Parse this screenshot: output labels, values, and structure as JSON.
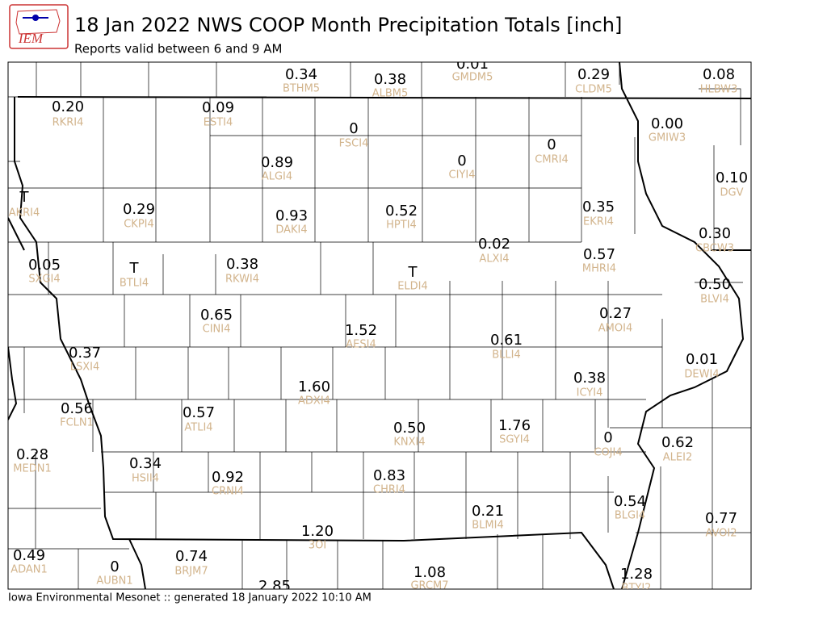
{
  "header": {
    "title": "18 Jan 2022 NWS COOP Month Precipitation Totals [inch]",
    "subtitle": "Reports valid between 6 and 9 AM",
    "logo": "IEM"
  },
  "footer": "Iowa Environmental Mesonet :: generated 18 January 2022 10:10 AM",
  "stations": [
    {
      "value": "0.34",
      "id": "BTHM5"
    },
    {
      "value": "0.38",
      "id": "ALBM5"
    },
    {
      "value": "0.01",
      "id": "GMDM5"
    },
    {
      "value": "0.29",
      "id": "CLDM5"
    },
    {
      "value": "0.08",
      "id": "HLBW3"
    },
    {
      "value": "0.20",
      "id": "RKRI4"
    },
    {
      "value": "0.09",
      "id": "ESTI4"
    },
    {
      "value": "0",
      "id": "FSCI4"
    },
    {
      "value": "0.00",
      "id": "GMIW3"
    },
    {
      "value": "0",
      "id": "CMRI4"
    },
    {
      "value": "0",
      "id": "CIYI4"
    },
    {
      "value": "0.89",
      "id": "ALGI4"
    },
    {
      "value": "0.10",
      "id": "DGV"
    },
    {
      "value": "T",
      "id": "AKRI4"
    },
    {
      "value": "0.29",
      "id": "CKPI4"
    },
    {
      "value": "0.93",
      "id": "DAKI4"
    },
    {
      "value": "0.52",
      "id": "HPTI4"
    },
    {
      "value": "0.35",
      "id": "EKRI4"
    },
    {
      "value": "0.30",
      "id": "CBCW3"
    },
    {
      "value": "0.02",
      "id": "ALXI4"
    },
    {
      "value": "0.05",
      "id": "SXGI4"
    },
    {
      "value": "T",
      "id": "BTLI4"
    },
    {
      "value": "0.38",
      "id": "RKWI4"
    },
    {
      "value": "T",
      "id": "ELDI4"
    },
    {
      "value": "0.57",
      "id": "MHRI4"
    },
    {
      "value": "0.50",
      "id": "BLVI4"
    },
    {
      "value": "0.27",
      "id": "AMOI4"
    },
    {
      "value": "0.65",
      "id": "CINI4"
    },
    {
      "value": "1.52",
      "id": "AESI4"
    },
    {
      "value": "0.61",
      "id": "BLLI4"
    },
    {
      "value": "0.37",
      "id": "LSXI4"
    },
    {
      "value": "0.01",
      "id": "DEWI4"
    },
    {
      "value": "0.38",
      "id": "ICYI4"
    },
    {
      "value": "1.60",
      "id": "ADXI4"
    },
    {
      "value": "0.56",
      "id": "FCLN1"
    },
    {
      "value": "0.57",
      "id": "ATLI4"
    },
    {
      "value": "0.50",
      "id": "KNXI4"
    },
    {
      "value": "1.76",
      "id": "SGYI4"
    },
    {
      "value": "0",
      "id": "COJI4"
    },
    {
      "value": "0.62",
      "id": "ALEI2"
    },
    {
      "value": "0.28",
      "id": "MEDN1"
    },
    {
      "value": "0.34",
      "id": "HSII4"
    },
    {
      "value": "0.92",
      "id": "CRNI4"
    },
    {
      "value": "0.83",
      "id": "CHRI4"
    },
    {
      "value": "0.21",
      "id": "BLMI4"
    },
    {
      "value": "0.54",
      "id": "BLGI4"
    },
    {
      "value": "0.77",
      "id": "AVOI2"
    },
    {
      "value": "1.20",
      "id": "3OI"
    },
    {
      "value": "0.49",
      "id": "ADAN1"
    },
    {
      "value": "0",
      "id": "AUBN1"
    },
    {
      "value": "0.74",
      "id": "BRJM7"
    },
    {
      "value": "2.85"
    },
    {
      "value": "1.08",
      "id": "GRCM7"
    },
    {
      "value": "1.28",
      "id": "BTYI2"
    }
  ]
}
